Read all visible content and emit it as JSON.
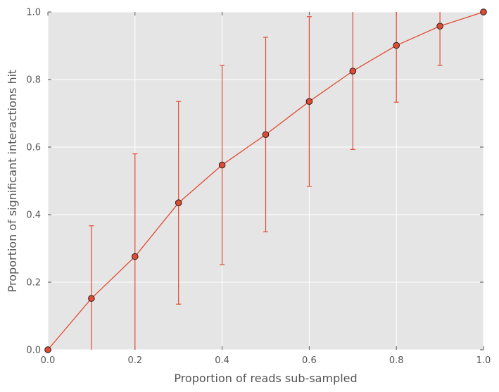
{
  "chart_data": {
    "type": "line",
    "title": "",
    "xlabel": "Proportion of reads sub-sampled",
    "ylabel": "Proportion of significant interactions hit",
    "xlim": [
      0.0,
      1.0
    ],
    "ylim": [
      0.0,
      1.0
    ],
    "grid": true,
    "legend": "none",
    "x_ticks": [
      "0.0",
      "0.2",
      "0.4",
      "0.6",
      "0.8",
      "1.0"
    ],
    "y_ticks": [
      "0.0",
      "0.2",
      "0.4",
      "0.6",
      "0.8",
      "1.0"
    ],
    "series": [
      {
        "x": [
          0.0,
          0.1,
          0.2,
          0.3,
          0.4,
          0.5,
          0.6,
          0.7,
          0.8,
          0.9,
          1.0
        ],
        "y": [
          0.0,
          0.152,
          0.276,
          0.435,
          0.547,
          0.637,
          0.735,
          0.825,
          0.901,
          0.958,
          1.0
        ],
        "error": [
          0.0,
          0.215,
          0.304,
          0.3,
          0.295,
          0.288,
          0.251,
          0.232,
          0.168,
          0.116,
          0.0
        ]
      }
    ],
    "colors": {
      "background": "#e5e5e5",
      "grid": "#ffffff",
      "line": "#e24a33",
      "marker_edge": "#222222",
      "text": "#555555"
    }
  }
}
